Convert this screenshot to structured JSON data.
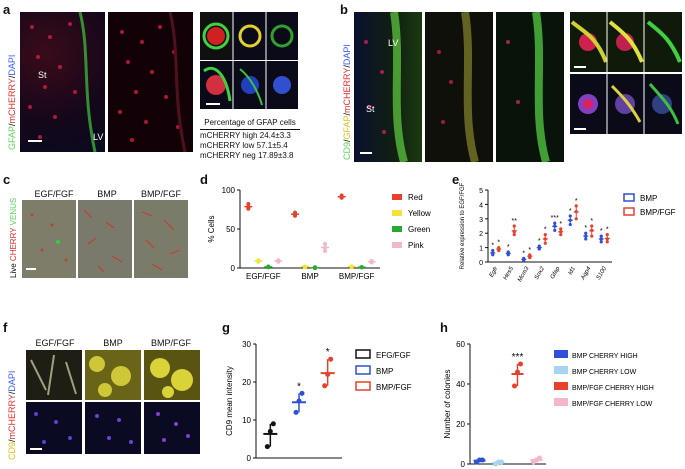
{
  "panels": {
    "a": {
      "label": "a",
      "stain": {
        "green": "GFAP",
        "sep1": "/",
        "red": "mCHERRY",
        "sep2": "/",
        "blue": "DAPI"
      },
      "regions": {
        "st": "St",
        "lv": "LV"
      },
      "table": {
        "title": "Percentage of GFAP cells",
        "rows": [
          {
            "label": "mCHERRY high",
            "value": "24.4±3.3"
          },
          {
            "label": "mCHERRY low",
            "value": "57.1±5.4"
          },
          {
            "label": "mCHERRY neg",
            "value": "17.89±3.8"
          }
        ]
      }
    },
    "b": {
      "label": "b",
      "stain": {
        "green": "CD9",
        "sep1": "/",
        "yellow": "GFAP",
        "sep2": "/",
        "red": "mCHERRY",
        "sep3": "/",
        "blue": "DAPI"
      },
      "regions": {
        "st": "St",
        "lv": "LV"
      }
    },
    "c": {
      "label": "c",
      "stain": {
        "pre": "Live",
        "red": "CHERRY",
        "green": "VENUS"
      },
      "conditions": [
        "EGF/FGF",
        "BMP",
        "BMP/FGF"
      ]
    },
    "f": {
      "label": "f",
      "stain": {
        "yellow": "CD9",
        "sep1": "/",
        "red": "mCHERRY",
        "sep2": "/",
        "blue": "DAPI"
      },
      "conditions": [
        "EGF/FGF",
        "BMP",
        "BMP/FGF"
      ]
    }
  },
  "colors": {
    "red": "#e8402a",
    "yellow": "#f2e33a",
    "green": "#2aa830",
    "pink": "#f2b8c6",
    "blue": "#2f4fd8",
    "black": "#111111",
    "lightblue": "#a8d4f0",
    "lightpink": "#f4b6c8"
  },
  "chart_data": [
    {
      "panel": "d",
      "type": "scatter",
      "ylabel": "% Cells",
      "ylim": [
        0,
        100
      ],
      "yticks": [
        0,
        50,
        100
      ],
      "categories": [
        "EGF/FGF",
        "BMP",
        "BMP/FGF"
      ],
      "legend": [
        "Red",
        "Yellow",
        "Green",
        "Pink"
      ],
      "series": [
        {
          "name": "Red",
          "values": [
            [
              82,
              76,
              78
            ],
            [
              71,
              67,
              69
            ],
            [
              93,
              90,
              91
            ]
          ]
        },
        {
          "name": "Yellow",
          "values": [
            [
              9,
              8,
              10
            ],
            [
              2,
              1,
              2
            ],
            [
              2,
              1,
              2
            ]
          ]
        },
        {
          "name": "Green",
          "values": [
            [
              1,
              1,
              2
            ],
            [
              0,
              1,
              0
            ],
            [
              1,
              1,
              1
            ]
          ]
        },
        {
          "name": "Pink",
          "values": [
            [
              10,
              8,
              9
            ],
            [
              31,
              26,
              22
            ],
            [
              8,
              7,
              9
            ]
          ]
        }
      ]
    },
    {
      "panel": "e",
      "type": "scatter",
      "ylabel": "Relative expression to EGF/FGF",
      "ylim": [
        0,
        5
      ],
      "yticks": [
        0,
        1,
        2,
        3,
        4,
        5
      ],
      "categories": [
        "Egfr",
        "Hes5",
        "Mcm3",
        "Sox2",
        "Gfap",
        "Id1",
        "Aqp4",
        "S100"
      ],
      "legend": [
        "BMP",
        "BMP/FGF"
      ],
      "series": [
        {
          "name": "BMP",
          "values": [
            [
              0.5,
              0.6,
              0.8
            ],
            [
              0.5,
              0.6,
              0.7
            ],
            [
              0.1,
              0.2,
              0.25
            ],
            [
              0.9,
              1.0,
              1.1
            ],
            [
              2.2,
              2.5,
              2.7
            ],
            [
              2.6,
              2.9,
              3.2
            ],
            [
              1.6,
              1.8,
              2.0
            ],
            [
              1.4,
              1.6,
              1.8
            ]
          ]
        },
        {
          "name": "BMP/FGF",
          "values": [
            [
              0.8,
              0.9,
              1.0
            ],
            [
              1.9,
              2.1,
              2.5
            ],
            [
              0.3,
              0.4,
              0.5
            ],
            [
              1.3,
              1.6,
              1.9
            ],
            [
              1.9,
              2.1,
              2.3
            ],
            [
              3.0,
              3.5,
              3.9
            ],
            [
              1.8,
              2.2,
              2.5
            ],
            [
              1.4,
              1.6,
              1.9
            ]
          ]
        }
      ],
      "significance": [
        [
          "*",
          "*"
        ],
        [
          "*",
          "**"
        ],
        [
          "*",
          "*"
        ],
        [
          "*",
          "*"
        ],
        [
          "***",
          "*"
        ],
        [
          "*",
          "*"
        ],
        [
          "*",
          "*"
        ],
        [
          "*",
          "*"
        ]
      ]
    },
    {
      "panel": "g",
      "type": "scatter",
      "ylabel": "CD9 mean intensity",
      "ylim": [
        0,
        30
      ],
      "yticks": [
        0,
        10,
        20,
        30
      ],
      "categories": [
        "EFG/FGF",
        "BMP",
        "BMP/FGF"
      ],
      "legend": [
        "EFG/FGF",
        "BMP",
        "BMP/FGF"
      ],
      "series": [
        {
          "name": "EFG/FGF",
          "values": [
            [
              3,
              7,
              9
            ]
          ]
        },
        {
          "name": "BMP",
          "values": [
            [
              12,
              15,
              17
            ]
          ]
        },
        {
          "name": "BMP/FGF",
          "values": [
            [
              19,
              22,
              26
            ]
          ]
        }
      ],
      "significance": [
        "",
        "*",
        "*"
      ]
    },
    {
      "panel": "h",
      "type": "scatter",
      "ylabel": "Number of colonies",
      "ylim": [
        0,
        60
      ],
      "yticks": [
        0,
        20,
        40,
        60
      ],
      "categories": [
        "BMP CHERRY HIGH",
        "BMP CHERRY LOW",
        "BMP/FGF CHERRY HIGH",
        "BMP/FGF CHERRY LOW"
      ],
      "legend": [
        "BMP CHERRY HIGH",
        "BMP CHERRY LOW",
        "BMP/FGF CHERRY HIGH",
        "BMP/FGF CHERRY LOW"
      ],
      "series": [
        {
          "name": "BMP CHERRY HIGH",
          "values": [
            [
              1,
              2,
              2
            ]
          ]
        },
        {
          "name": "BMP CHERRY LOW",
          "values": [
            [
              0,
              1,
              1
            ]
          ]
        },
        {
          "name": "BMP/FGF CHERRY HIGH",
          "values": [
            [
              39,
              46,
              50
            ]
          ]
        },
        {
          "name": "BMP/FGF CHERRY LOW",
          "values": [
            [
              1,
              2,
              3
            ]
          ]
        }
      ],
      "significance": [
        "",
        "",
        "***",
        ""
      ]
    }
  ]
}
